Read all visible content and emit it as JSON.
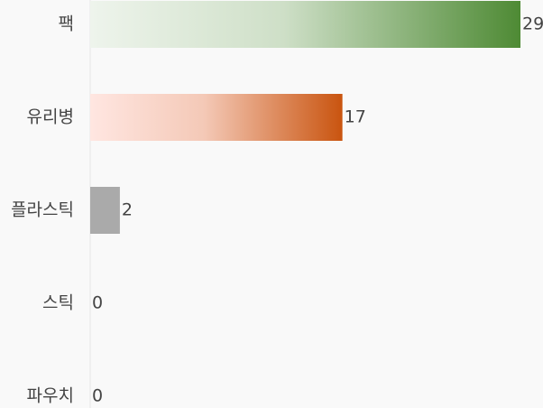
{
  "chart_data": {
    "type": "bar",
    "orientation": "horizontal",
    "categories": [
      "팩",
      "유리병",
      "플라스틱",
      "스틱",
      "파우치"
    ],
    "values": [
      29,
      17,
      2,
      0,
      0
    ],
    "colors": [
      [
        "#eef4ec",
        "#4e8a34"
      ],
      [
        "#ffe6e1",
        "#c9540f"
      ],
      [
        "#aaaaaa",
        "#aaaaaa"
      ],
      [
        "#aaaaaa",
        "#aaaaaa"
      ],
      [
        "#aaaaaa",
        "#aaaaaa"
      ]
    ]
  }
}
